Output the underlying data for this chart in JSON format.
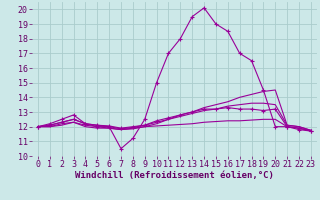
{
  "background_color": "#cce8e8",
  "grid_color": "#aacccc",
  "line_color": "#990099",
  "xlim": [
    -0.5,
    23.5
  ],
  "ylim": [
    10,
    20.5
  ],
  "xlabel": "Windchill (Refroidissement éolien,°C)",
  "xlabel_fontsize": 6.5,
  "xticks": [
    0,
    1,
    2,
    3,
    4,
    5,
    6,
    7,
    8,
    9,
    10,
    11,
    12,
    13,
    14,
    15,
    16,
    17,
    18,
    19,
    20,
    21,
    22,
    23
  ],
  "yticks": [
    10,
    11,
    12,
    13,
    14,
    15,
    16,
    17,
    18,
    19,
    20
  ],
  "tick_fontsize": 6.0,
  "series": [
    {
      "x": [
        0,
        1,
        2,
        3,
        4,
        5,
        6,
        7,
        8,
        9,
        10,
        11,
        12,
        13,
        14,
        15,
        16,
        17,
        18,
        19,
        20,
        21,
        22,
        23
      ],
      "y": [
        12.0,
        12.2,
        12.5,
        12.8,
        12.2,
        12.0,
        12.0,
        10.5,
        11.2,
        12.5,
        15.0,
        17.0,
        18.0,
        19.5,
        20.1,
        19.0,
        18.5,
        17.0,
        16.5,
        14.5,
        12.0,
        12.0,
        11.8,
        11.7
      ],
      "marker": "+"
    },
    {
      "x": [
        0,
        1,
        2,
        3,
        4,
        5,
        6,
        7,
        8,
        9,
        10,
        11,
        12,
        13,
        14,
        15,
        16,
        17,
        18,
        19,
        20,
        21,
        22,
        23
      ],
      "y": [
        12.0,
        12.0,
        12.1,
        12.3,
        12.0,
        11.9,
        11.9,
        11.8,
        11.85,
        12.0,
        12.05,
        12.1,
        12.15,
        12.2,
        12.3,
        12.35,
        12.4,
        12.4,
        12.45,
        12.5,
        12.5,
        12.0,
        11.9,
        11.7
      ],
      "marker": null
    },
    {
      "x": [
        0,
        1,
        2,
        3,
        4,
        5,
        6,
        7,
        8,
        9,
        10,
        11,
        12,
        13,
        14,
        15,
        16,
        17,
        18,
        19,
        20,
        21,
        22,
        23
      ],
      "y": [
        12.0,
        12.1,
        12.3,
        12.5,
        12.2,
        12.1,
        12.05,
        11.9,
        12.0,
        12.1,
        12.4,
        12.6,
        12.8,
        13.0,
        13.2,
        13.2,
        13.3,
        13.2,
        13.2,
        13.1,
        13.2,
        12.0,
        11.9,
        11.7
      ],
      "marker": "+"
    },
    {
      "x": [
        0,
        1,
        2,
        3,
        4,
        5,
        6,
        7,
        8,
        9,
        10,
        11,
        12,
        13,
        14,
        15,
        16,
        17,
        18,
        19,
        20,
        21,
        22,
        23
      ],
      "y": [
        12.0,
        12.1,
        12.3,
        12.5,
        12.2,
        12.1,
        12.0,
        11.85,
        11.95,
        12.1,
        12.3,
        12.5,
        12.8,
        13.0,
        13.3,
        13.5,
        13.7,
        14.0,
        14.2,
        14.4,
        14.5,
        12.1,
        12.0,
        11.75
      ],
      "marker": null
    },
    {
      "x": [
        0,
        1,
        2,
        3,
        4,
        5,
        6,
        7,
        8,
        9,
        10,
        11,
        12,
        13,
        14,
        15,
        16,
        17,
        18,
        19,
        20,
        21,
        22,
        23
      ],
      "y": [
        12.0,
        12.0,
        12.2,
        12.3,
        12.1,
        12.0,
        11.9,
        11.8,
        11.9,
        12.0,
        12.2,
        12.5,
        12.7,
        12.9,
        13.1,
        13.2,
        13.4,
        13.5,
        13.6,
        13.6,
        13.5,
        12.1,
        12.0,
        11.75
      ],
      "marker": null
    }
  ]
}
